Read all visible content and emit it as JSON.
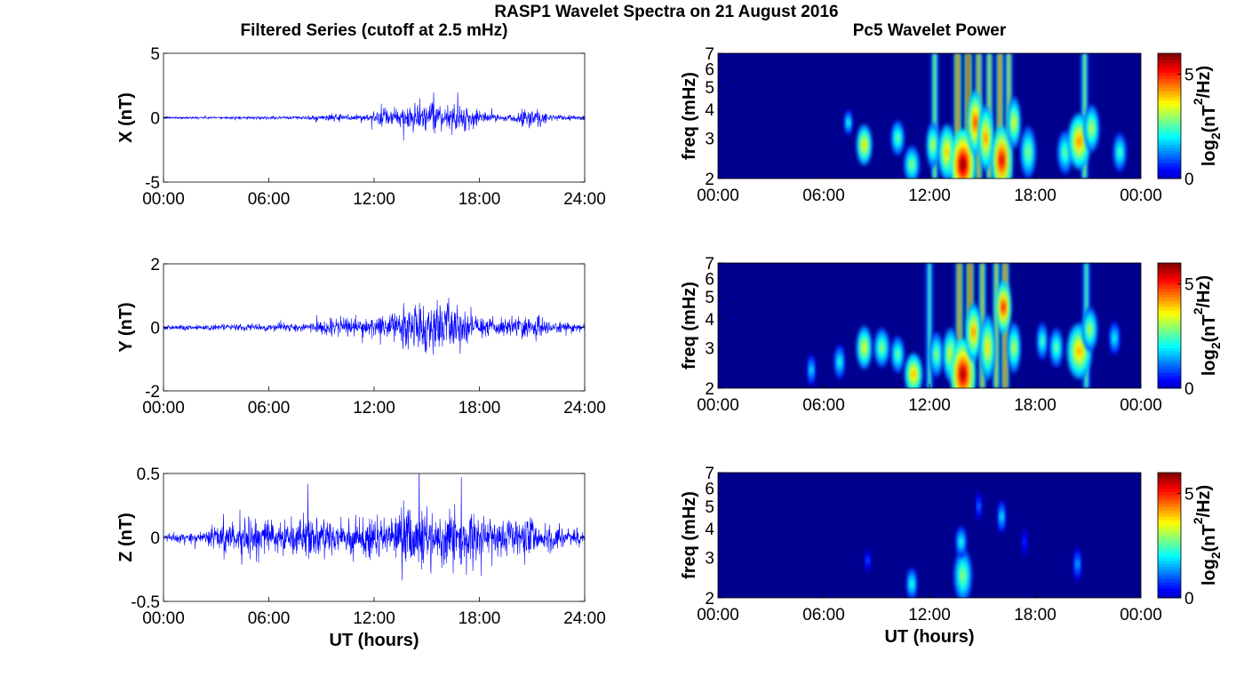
{
  "figure": {
    "title": "RASP1 Wavelet Spectra on 21 August 2016",
    "left_column_title": "Filtered Series (cutoff at 2.5 mHz)",
    "right_column_title": "Pc5 Wavelet Power",
    "bottom_xlabel_left": "UT (hours)",
    "bottom_xlabel_right": "UT (hours)"
  },
  "colors": {
    "series_line": "#0000ff",
    "axis": "#000000",
    "colormap": "jet"
  },
  "chart_data": [
    {
      "id": "x-series",
      "type": "line",
      "ylabel": "X (nT)",
      "xlim": [
        0,
        24
      ],
      "ylim": [
        -5,
        5
      ],
      "xticks": [
        "00:00",
        "06:00",
        "12:00",
        "18:00",
        "24:00"
      ],
      "yticks": [
        "5",
        "0",
        "-5"
      ],
      "envelope": {
        "hours": [
          0,
          3,
          6,
          8,
          9,
          10,
          11,
          12,
          12.5,
          13,
          14,
          15,
          16,
          17,
          18,
          19,
          20,
          21,
          21.5,
          22,
          24
        ],
        "amplitude_nT": [
          0.1,
          0.1,
          0.12,
          0.15,
          0.25,
          0.3,
          0.3,
          0.4,
          0.9,
          0.6,
          1.2,
          1.1,
          1.0,
          1.2,
          0.6,
          0.3,
          0.3,
          1.1,
          0.8,
          0.3,
          0.2
        ]
      }
    },
    {
      "id": "y-series",
      "type": "line",
      "ylabel": "Y (nT)",
      "xlim": [
        0,
        24
      ],
      "ylim": [
        -2,
        2
      ],
      "xticks": [
        "00:00",
        "06:00",
        "12:00",
        "18:00",
        "24:00"
      ],
      "yticks": [
        "2",
        "0",
        "-2"
      ],
      "envelope": {
        "hours": [
          0,
          3,
          6,
          8,
          9,
          10,
          11,
          12,
          12.5,
          13,
          14,
          15,
          16,
          17,
          18,
          19,
          20,
          21,
          21.5,
          22,
          24
        ],
        "amplitude_nT": [
          0.1,
          0.1,
          0.12,
          0.15,
          0.25,
          0.3,
          0.3,
          0.35,
          0.5,
          0.5,
          0.8,
          0.8,
          0.9,
          0.6,
          0.4,
          0.3,
          0.3,
          0.5,
          0.4,
          0.2,
          0.15
        ]
      }
    },
    {
      "id": "z-series",
      "type": "line",
      "ylabel": "Z (nT)",
      "xlabel": "UT (hours)",
      "xlim": [
        0,
        24
      ],
      "ylim": [
        -0.5,
        0.5
      ],
      "xticks": [
        "00:00",
        "06:00",
        "12:00",
        "18:00",
        "24:00"
      ],
      "yticks": [
        "0.5",
        "0",
        "-0.5"
      ],
      "envelope": {
        "hours": [
          0,
          2,
          3,
          5,
          7,
          9,
          11,
          12,
          13,
          14,
          15,
          16,
          17,
          18,
          19,
          20,
          21,
          22,
          24
        ],
        "amplitude_nT": [
          0.03,
          0.05,
          0.12,
          0.15,
          0.15,
          0.15,
          0.17,
          0.18,
          0.2,
          0.3,
          0.25,
          0.22,
          0.22,
          0.2,
          0.15,
          0.15,
          0.2,
          0.12,
          0.06
        ]
      }
    },
    {
      "id": "x-power",
      "type": "heatmap",
      "ylabel": "freq (mHz)",
      "xlim": [
        0,
        24
      ],
      "ylim": [
        2,
        7
      ],
      "yscale": "log",
      "xticks": [
        "00:00",
        "06:00",
        "12:00",
        "18:00",
        "00:00"
      ],
      "yticks": [
        "7",
        "6",
        "5",
        "4",
        "3",
        "2"
      ],
      "colorbar": {
        "label_base": "log",
        "label_sub": "2",
        "label_unit": "(nT",
        "label_sup": "2",
        "label_tail": "/Hz)",
        "ticks": [
          "5",
          "0"
        ],
        "range": [
          0,
          6
        ]
      },
      "blobs": [
        {
          "t": 7.4,
          "f": 3.5,
          "w": 0.15,
          "h": 0.2,
          "p": 2.5
        },
        {
          "t": 8.3,
          "f": 2.8,
          "w": 0.3,
          "h": 0.35,
          "p": 4.0
        },
        {
          "t": 10.2,
          "f": 3.0,
          "w": 0.25,
          "h": 0.3,
          "p": 3.0
        },
        {
          "t": 11.0,
          "f": 2.3,
          "w": 0.3,
          "h": 0.25,
          "p": 3.2
        },
        {
          "t": 12.2,
          "f": 2.8,
          "w": 0.25,
          "h": 0.4,
          "p": 3.5
        },
        {
          "t": 13.0,
          "f": 2.6,
          "w": 0.35,
          "h": 0.5,
          "p": 4.2
        },
        {
          "t": 13.9,
          "f": 2.3,
          "w": 0.5,
          "h": 0.6,
          "p": 6.0
        },
        {
          "t": 14.6,
          "f": 3.5,
          "w": 0.3,
          "h": 0.8,
          "p": 5.0
        },
        {
          "t": 15.2,
          "f": 3.0,
          "w": 0.3,
          "h": 0.7,
          "p": 4.5
        },
        {
          "t": 16.1,
          "f": 2.4,
          "w": 0.4,
          "h": 0.6,
          "p": 5.5
        },
        {
          "t": 16.8,
          "f": 3.5,
          "w": 0.25,
          "h": 0.6,
          "p": 3.8
        },
        {
          "t": 17.6,
          "f": 2.6,
          "w": 0.3,
          "h": 0.45,
          "p": 3.2
        },
        {
          "t": 19.7,
          "f": 2.6,
          "w": 0.3,
          "h": 0.35,
          "p": 3.0
        },
        {
          "t": 20.5,
          "f": 2.9,
          "w": 0.45,
          "h": 0.55,
          "p": 4.5
        },
        {
          "t": 21.2,
          "f": 3.3,
          "w": 0.3,
          "h": 0.5,
          "p": 3.5
        },
        {
          "t": 22.8,
          "f": 2.6,
          "w": 0.25,
          "h": 0.3,
          "p": 2.8
        }
      ],
      "streaks": [
        {
          "t": 12.3,
          "p": 3.5
        },
        {
          "t": 13.6,
          "p": 5.0
        },
        {
          "t": 14.2,
          "p": 5.8
        },
        {
          "t": 14.8,
          "p": 4.5
        },
        {
          "t": 15.4,
          "p": 4.0
        },
        {
          "t": 16.0,
          "p": 4.8
        },
        {
          "t": 16.5,
          "p": 4.0
        },
        {
          "t": 20.8,
          "p": 3.5
        }
      ]
    },
    {
      "id": "y-power",
      "type": "heatmap",
      "ylabel": "freq (mHz)",
      "xlim": [
        0,
        24
      ],
      "ylim": [
        2,
        7
      ],
      "yscale": "log",
      "xticks": [
        "00:00",
        "06:00",
        "12:00",
        "18:00",
        "00:00"
      ],
      "yticks": [
        "7",
        "6",
        "5",
        "4",
        "3",
        "2"
      ],
      "colorbar": {
        "label_base": "log",
        "label_sub": "2",
        "label_unit": "(nT",
        "label_sup": "2",
        "label_tail": "/Hz)",
        "ticks": [
          "5",
          "0"
        ],
        "range": [
          0,
          6
        ]
      },
      "blobs": [
        {
          "t": 5.3,
          "f": 2.4,
          "w": 0.15,
          "h": 0.2,
          "p": 2.2
        },
        {
          "t": 6.9,
          "f": 2.6,
          "w": 0.2,
          "h": 0.25,
          "p": 2.5
        },
        {
          "t": 8.3,
          "f": 3.0,
          "w": 0.3,
          "h": 0.4,
          "p": 3.8
        },
        {
          "t": 9.3,
          "f": 3.0,
          "w": 0.3,
          "h": 0.35,
          "p": 3.2
        },
        {
          "t": 10.2,
          "f": 2.8,
          "w": 0.25,
          "h": 0.3,
          "p": 3.0
        },
        {
          "t": 11.1,
          "f": 2.3,
          "w": 0.35,
          "h": 0.3,
          "p": 4.3
        },
        {
          "t": 12.4,
          "f": 2.8,
          "w": 0.25,
          "h": 0.4,
          "p": 3.2
        },
        {
          "t": 13.2,
          "f": 2.8,
          "w": 0.3,
          "h": 0.5,
          "p": 3.8
        },
        {
          "t": 13.9,
          "f": 2.3,
          "w": 0.5,
          "h": 0.6,
          "p": 5.8
        },
        {
          "t": 14.5,
          "f": 3.5,
          "w": 0.3,
          "h": 0.7,
          "p": 4.5
        },
        {
          "t": 15.3,
          "f": 3.0,
          "w": 0.3,
          "h": 0.7,
          "p": 4.0
        },
        {
          "t": 16.2,
          "f": 4.5,
          "w": 0.3,
          "h": 0.8,
          "p": 5.2
        },
        {
          "t": 16.8,
          "f": 3.0,
          "w": 0.25,
          "h": 0.5,
          "p": 3.5
        },
        {
          "t": 18.4,
          "f": 3.2,
          "w": 0.2,
          "h": 0.35,
          "p": 2.8
        },
        {
          "t": 19.2,
          "f": 3.0,
          "w": 0.25,
          "h": 0.35,
          "p": 3.0
        },
        {
          "t": 20.5,
          "f": 2.9,
          "w": 0.5,
          "h": 0.55,
          "p": 4.3
        },
        {
          "t": 21.1,
          "f": 3.6,
          "w": 0.3,
          "h": 0.5,
          "p": 3.4
        },
        {
          "t": 22.5,
          "f": 3.3,
          "w": 0.2,
          "h": 0.3,
          "p": 2.4
        }
      ],
      "streaks": [
        {
          "t": 12.0,
          "p": 3.0
        },
        {
          "t": 13.7,
          "p": 4.8
        },
        {
          "t": 14.3,
          "p": 5.5
        },
        {
          "t": 15.0,
          "p": 4.2
        },
        {
          "t": 15.8,
          "p": 4.0
        },
        {
          "t": 16.3,
          "p": 5.0
        },
        {
          "t": 20.9,
          "p": 3.2
        }
      ]
    },
    {
      "id": "z-power",
      "type": "heatmap",
      "ylabel": "freq (mHz)",
      "xlabel": "UT (hours)",
      "xlim": [
        0,
        24
      ],
      "ylim": [
        2,
        7
      ],
      "yscale": "log",
      "xticks": [
        "00:00",
        "06:00",
        "12:00",
        "18:00",
        "00:00"
      ],
      "yticks": [
        "7",
        "6",
        "5",
        "4",
        "3",
        "2"
      ],
      "colorbar": {
        "label_base": "log",
        "label_sub": "2",
        "label_unit": "(nT",
        "label_sup": "2",
        "label_tail": "/Hz)",
        "ticks": [
          "5",
          "0"
        ],
        "range": [
          0,
          6
        ]
      },
      "blobs": [
        {
          "t": 8.5,
          "f": 2.9,
          "w": 0.1,
          "h": 0.15,
          "p": 1.2
        },
        {
          "t": 11.0,
          "f": 2.3,
          "w": 0.2,
          "h": 0.2,
          "p": 2.6
        },
        {
          "t": 13.9,
          "f": 2.5,
          "w": 0.35,
          "h": 0.45,
          "p": 3.2
        },
        {
          "t": 13.8,
          "f": 3.5,
          "w": 0.2,
          "h": 0.3,
          "p": 2.5
        },
        {
          "t": 14.8,
          "f": 5.0,
          "w": 0.1,
          "h": 0.4,
          "p": 1.4
        },
        {
          "t": 16.1,
          "f": 4.5,
          "w": 0.15,
          "h": 0.4,
          "p": 2.2
        },
        {
          "t": 17.4,
          "f": 3.5,
          "w": 0.1,
          "h": 0.3,
          "p": 1.0
        },
        {
          "t": 20.4,
          "f": 2.8,
          "w": 0.15,
          "h": 0.25,
          "p": 1.8
        }
      ],
      "streaks": []
    }
  ]
}
